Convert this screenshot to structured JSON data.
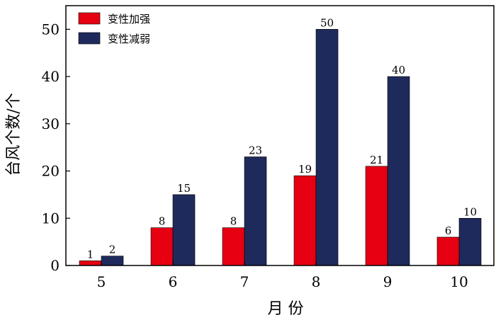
{
  "chart_data": {
    "type": "bar",
    "categories": [
      "5",
      "6",
      "7",
      "8",
      "9",
      "10"
    ],
    "series": [
      {
        "name": "变性加强",
        "values": [
          1,
          8,
          8,
          19,
          21,
          6
        ],
        "color": "#e60012"
      },
      {
        "name": "变性减弱",
        "values": [
          2,
          15,
          23,
          50,
          40,
          10
        ],
        "color": "#1f2a5c"
      }
    ],
    "xlabel": "月 份",
    "ylabel": "台风个数/个",
    "ylim": [
      0,
      55
    ],
    "yticks": [
      0,
      10,
      20,
      30,
      40,
      50
    ],
    "grid": false,
    "legend_position": "top-left",
    "data_labels": true
  }
}
